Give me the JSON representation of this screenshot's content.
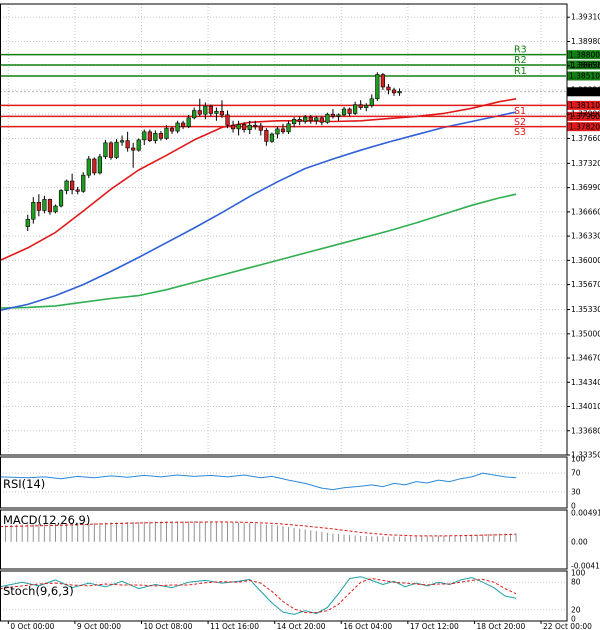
{
  "chart_data": {
    "type": "candlestick",
    "colors": {
      "background": "#ffffff",
      "grid": "#c8c8c8",
      "candle_up": "#1e9e1e",
      "candle_down": "#d42020",
      "wick": "#000000",
      "resistance": "#128012",
      "support": "#e01a1a",
      "ma_fast": "#e01a1a",
      "ma_mid": "#3060d8",
      "ma_slow": "#30b050",
      "rsi": "#2a8ad8",
      "macd_hist": "#909090",
      "macd_signal": "#e01a1a",
      "stoch_main": "#20a0a8",
      "stoch_signal": "#e01a1a",
      "current_price": "#000000"
    },
    "price_axis": {
      "ticks": [
        "1.39310",
        "1.38980",
        "1.38650",
        "1.38320",
        "1.37990",
        "1.37660",
        "1.37320",
        "1.36990",
        "1.36660",
        "1.36330",
        "1.36000",
        "1.35670",
        "1.35330",
        "1.35000",
        "1.34670",
        "1.34340",
        "1.34010",
        "1.33680",
        "1.33350"
      ],
      "ylim": [
        1.3335,
        1.3949
      ]
    },
    "time_axis": {
      "labels": [
        "0 Oct 00:00",
        "9 Oct 00:00",
        "10 Oct 08:00",
        "11 Oct 16:00",
        "14 Oct 20:00",
        "16 Oct 04:00",
        "17 Oct 12:00",
        "18 Oct 20:00",
        "22 Oct 00:00"
      ],
      "label_index": [
        -3.5,
        8.5,
        20.5,
        32.5,
        44.5,
        56.5,
        68.5,
        80.5,
        92.5
      ],
      "xlim": [
        -5,
        97
      ]
    },
    "levels": [
      {
        "name": "R3",
        "value": "1.38800",
        "kind": "resistance"
      },
      {
        "name": "R2",
        "value": "1.38660",
        "kind": "resistance"
      },
      {
        "name": "R1",
        "value": "1.38510",
        "kind": "resistance"
      },
      {
        "name": "S1",
        "value": "1.38110",
        "kind": "support"
      },
      {
        "name": "S2",
        "value": "1.37960",
        "kind": "support"
      },
      {
        "name": "S3",
        "value": "1.37820",
        "kind": "support"
      }
    ],
    "current_price": "1.38295",
    "ohlc": [
      [
        1.3646,
        1.3662,
        1.364,
        1.3656
      ],
      [
        1.3656,
        1.3686,
        1.365,
        1.3679
      ],
      [
        1.3679,
        1.369,
        1.366,
        1.3668
      ],
      [
        1.3668,
        1.3688,
        1.3664,
        1.3683
      ],
      [
        1.3683,
        1.3684,
        1.3662,
        1.3666
      ],
      [
        1.3666,
        1.3676,
        1.3664,
        1.3674
      ],
      [
        1.3674,
        1.3697,
        1.3672,
        1.3695
      ],
      [
        1.3695,
        1.371,
        1.369,
        1.3708
      ],
      [
        1.3708,
        1.3718,
        1.369,
        1.3696
      ],
      [
        1.3696,
        1.37,
        1.369,
        1.3694
      ],
      [
        1.3694,
        1.372,
        1.3692,
        1.3716
      ],
      [
        1.3716,
        1.3742,
        1.3712,
        1.3738
      ],
      [
        1.3738,
        1.374,
        1.3716,
        1.3719
      ],
      [
        1.3719,
        1.3745,
        1.3717,
        1.3741
      ],
      [
        1.3741,
        1.3764,
        1.3738,
        1.376
      ],
      [
        1.376,
        1.3762,
        1.3737,
        1.374
      ],
      [
        1.374,
        1.3765,
        1.3738,
        1.3761
      ],
      [
        1.3761,
        1.377,
        1.3756,
        1.3763
      ],
      [
        1.3763,
        1.3775,
        1.3748,
        1.3753
      ],
      [
        1.3753,
        1.376,
        1.3726,
        1.375
      ],
      [
        1.375,
        1.3766,
        1.3748,
        1.3764
      ],
      [
        1.3764,
        1.3778,
        1.3757,
        1.3775
      ],
      [
        1.3775,
        1.3778,
        1.3761,
        1.3763
      ],
      [
        1.3763,
        1.3777,
        1.3759,
        1.3773
      ],
      [
        1.3773,
        1.3776,
        1.3763,
        1.3766
      ],
      [
        1.3766,
        1.3784,
        1.3764,
        1.378
      ],
      [
        1.378,
        1.3782,
        1.3772,
        1.3776
      ],
      [
        1.3776,
        1.379,
        1.3773,
        1.3787
      ],
      [
        1.3787,
        1.379,
        1.3779,
        1.3782
      ],
      [
        1.3782,
        1.3798,
        1.378,
        1.3794
      ],
      [
        1.3794,
        1.3808,
        1.3792,
        1.3804
      ],
      [
        1.3804,
        1.382,
        1.3796,
        1.3799
      ],
      [
        1.3799,
        1.3815,
        1.3792,
        1.381
      ],
      [
        1.381,
        1.3812,
        1.3796,
        1.38
      ],
      [
        1.38,
        1.3808,
        1.379,
        1.3803
      ],
      [
        1.3803,
        1.3818,
        1.3794,
        1.3798
      ],
      [
        1.3798,
        1.3804,
        1.378,
        1.3784
      ],
      [
        1.3784,
        1.379,
        1.3774,
        1.3779
      ],
      [
        1.3779,
        1.379,
        1.377,
        1.3785
      ],
      [
        1.3785,
        1.3788,
        1.3774,
        1.3778
      ],
      [
        1.3778,
        1.379,
        1.3772,
        1.3784
      ],
      [
        1.3784,
        1.379,
        1.3778,
        1.3783
      ],
      [
        1.3783,
        1.3787,
        1.377,
        1.3777
      ],
      [
        1.3777,
        1.378,
        1.3756,
        1.3762
      ],
      [
        1.3762,
        1.3774,
        1.376,
        1.3772
      ],
      [
        1.3772,
        1.3782,
        1.3766,
        1.3779
      ],
      [
        1.3779,
        1.3786,
        1.3772,
        1.3775
      ],
      [
        1.3775,
        1.379,
        1.3772,
        1.3786
      ],
      [
        1.3786,
        1.3795,
        1.3781,
        1.3792
      ],
      [
        1.3792,
        1.3796,
        1.3784,
        1.3789
      ],
      [
        1.3789,
        1.3798,
        1.3786,
        1.3795
      ],
      [
        1.3795,
        1.3798,
        1.3786,
        1.379
      ],
      [
        1.379,
        1.3797,
        1.3785,
        1.3794
      ],
      [
        1.3794,
        1.3796,
        1.3784,
        1.3788
      ],
      [
        1.3788,
        1.3801,
        1.3786,
        1.3799
      ],
      [
        1.3799,
        1.3806,
        1.3793,
        1.3796
      ],
      [
        1.3796,
        1.38,
        1.379,
        1.3798
      ],
      [
        1.3798,
        1.3809,
        1.3796,
        1.3806
      ],
      [
        1.3806,
        1.3808,
        1.3796,
        1.38
      ],
      [
        1.38,
        1.3816,
        1.3798,
        1.3812
      ],
      [
        1.3812,
        1.3818,
        1.3805,
        1.3808
      ],
      [
        1.3808,
        1.3814,
        1.3803,
        1.3811
      ],
      [
        1.3811,
        1.3826,
        1.3808,
        1.382
      ],
      [
        1.382,
        1.3856,
        1.3817,
        1.3853
      ],
      [
        1.3853,
        1.3855,
        1.3832,
        1.3836
      ],
      [
        1.3836,
        1.384,
        1.3826,
        1.3832
      ],
      [
        1.3832,
        1.3835,
        1.3824,
        1.3828
      ],
      [
        1.3828,
        1.3834,
        1.3824,
        1.383
      ]
    ],
    "ma_fast": [
      [
        -5,
        1.36
      ],
      [
        0,
        1.3617
      ],
      [
        5,
        1.3638
      ],
      [
        10,
        1.3667
      ],
      [
        15,
        1.3697
      ],
      [
        20,
        1.3723
      ],
      [
        25,
        1.3743
      ],
      [
        30,
        1.3764
      ],
      [
        35,
        1.3781
      ],
      [
        40,
        1.3788
      ],
      [
        45,
        1.379
      ],
      [
        50,
        1.379
      ],
      [
        55,
        1.3789
      ],
      [
        60,
        1.379
      ],
      [
        65,
        1.3793
      ],
      [
        70,
        1.3796
      ],
      [
        75,
        1.38
      ],
      [
        80,
        1.3807
      ],
      [
        85,
        1.3816
      ],
      [
        88,
        1.382
      ]
    ],
    "ma_mid": [
      [
        -5,
        1.3532
      ],
      [
        0,
        1.354
      ],
      [
        5,
        1.3552
      ],
      [
        10,
        1.3567
      ],
      [
        15,
        1.3585
      ],
      [
        20,
        1.3604
      ],
      [
        25,
        1.3624
      ],
      [
        30,
        1.3644
      ],
      [
        35,
        1.3665
      ],
      [
        40,
        1.3687
      ],
      [
        45,
        1.3707
      ],
      [
        50,
        1.3725
      ],
      [
        55,
        1.3738
      ],
      [
        60,
        1.375
      ],
      [
        65,
        1.3761
      ],
      [
        70,
        1.3771
      ],
      [
        75,
        1.3781
      ],
      [
        80,
        1.3789
      ],
      [
        85,
        1.3797
      ],
      [
        88,
        1.3802
      ]
    ],
    "ma_slow": [
      [
        -5,
        1.3535
      ],
      [
        0,
        1.3536
      ],
      [
        5,
        1.3538
      ],
      [
        10,
        1.3543
      ],
      [
        15,
        1.3548
      ],
      [
        20,
        1.3552
      ],
      [
        25,
        1.356
      ],
      [
        30,
        1.357
      ],
      [
        35,
        1.358
      ],
      [
        40,
        1.359
      ],
      [
        45,
        1.36
      ],
      [
        50,
        1.361
      ],
      [
        55,
        1.362
      ],
      [
        60,
        1.363
      ],
      [
        65,
        1.364
      ],
      [
        70,
        1.3651
      ],
      [
        75,
        1.3663
      ],
      [
        80,
        1.3675
      ],
      [
        85,
        1.3685
      ],
      [
        88,
        1.369
      ]
    ],
    "rsi": {
      "label": "RSI(14)",
      "ticks": [
        "100",
        "70",
        "30",
        "0"
      ],
      "values": [
        [
          -5,
          62
        ],
        [
          0,
          60
        ],
        [
          3,
          62
        ],
        [
          6,
          58
        ],
        [
          9,
          63
        ],
        [
          12,
          60
        ],
        [
          15,
          64
        ],
        [
          18,
          61
        ],
        [
          21,
          65
        ],
        [
          24,
          62
        ],
        [
          27,
          66
        ],
        [
          30,
          63
        ],
        [
          33,
          65
        ],
        [
          36,
          62
        ],
        [
          39,
          66
        ],
        [
          42,
          60
        ],
        [
          44,
          63
        ],
        [
          47,
          55
        ],
        [
          50,
          48
        ],
        [
          53,
          38
        ],
        [
          55,
          35
        ],
        [
          57,
          39
        ],
        [
          60,
          42
        ],
        [
          62,
          45
        ],
        [
          64,
          41
        ],
        [
          66,
          48
        ],
        [
          68,
          45
        ],
        [
          70,
          52
        ],
        [
          72,
          49
        ],
        [
          74,
          55
        ],
        [
          76,
          52
        ],
        [
          78,
          58
        ],
        [
          80,
          62
        ],
        [
          82,
          70
        ],
        [
          84,
          66
        ],
        [
          86,
          62
        ],
        [
          88,
          60
        ]
      ]
    },
    "macd": {
      "label": "MACD(12,26,9)",
      "ticks": [
        "0.00491",
        "0.00",
        "-0.00412"
      ],
      "hist": [
        [
          -5,
          0.0028
        ],
        [
          0,
          0.003
        ],
        [
          5,
          0.0031
        ],
        [
          10,
          0.0032
        ],
        [
          15,
          0.0033
        ],
        [
          20,
          0.0034
        ],
        [
          25,
          0.0035
        ],
        [
          30,
          0.0035
        ],
        [
          35,
          0.0034
        ],
        [
          40,
          0.0032
        ],
        [
          45,
          0.0028
        ],
        [
          50,
          0.0021
        ],
        [
          55,
          0.0014
        ],
        [
          60,
          0.001
        ],
        [
          65,
          0.0009
        ],
        [
          70,
          0.0009
        ],
        [
          75,
          0.001
        ],
        [
          80,
          0.0012
        ],
        [
          85,
          0.0014
        ],
        [
          88,
          0.0014
        ]
      ],
      "signal": [
        [
          -5,
          0.0026
        ],
        [
          5,
          0.0028
        ],
        [
          15,
          0.0031
        ],
        [
          25,
          0.0033
        ],
        [
          35,
          0.0034
        ],
        [
          40,
          0.0033
        ],
        [
          45,
          0.0031
        ],
        [
          50,
          0.0027
        ],
        [
          55,
          0.0022
        ],
        [
          60,
          0.0016
        ],
        [
          65,
          0.0012
        ],
        [
          70,
          0.001
        ],
        [
          75,
          0.001
        ],
        [
          80,
          0.0011
        ],
        [
          85,
          0.0012
        ],
        [
          88,
          0.0013
        ]
      ]
    },
    "stoch": {
      "label": "Stoch(9,6,3)",
      "ticks": [
        "100",
        "80",
        "20",
        "0"
      ],
      "main": [
        [
          -5,
          70
        ],
        [
          -1,
          80
        ],
        [
          2,
          72
        ],
        [
          5,
          85
        ],
        [
          8,
          68
        ],
        [
          11,
          78
        ],
        [
          14,
          70
        ],
        [
          17,
          82
        ],
        [
          20,
          66
        ],
        [
          23,
          75
        ],
        [
          26,
          68
        ],
        [
          29,
          80
        ],
        [
          32,
          84
        ],
        [
          35,
          78
        ],
        [
          38,
          82
        ],
        [
          40,
          86
        ],
        [
          42,
          60
        ],
        [
          44,
          35
        ],
        [
          46,
          15
        ],
        [
          48,
          10
        ],
        [
          50,
          18
        ],
        [
          52,
          12
        ],
        [
          54,
          25
        ],
        [
          56,
          55
        ],
        [
          58,
          88
        ],
        [
          60,
          92
        ],
        [
          62,
          84
        ],
        [
          64,
          75
        ],
        [
          66,
          82
        ],
        [
          68,
          70
        ],
        [
          70,
          78
        ],
        [
          72,
          72
        ],
        [
          74,
          80
        ],
        [
          76,
          75
        ],
        [
          78,
          85
        ],
        [
          80,
          90
        ],
        [
          82,
          80
        ],
        [
          84,
          68
        ],
        [
          86,
          50
        ],
        [
          88,
          45
        ]
      ],
      "signal": [
        [
          -5,
          66
        ],
        [
          -1,
          72
        ],
        [
          2,
          76
        ],
        [
          5,
          78
        ],
        [
          8,
          74
        ],
        [
          11,
          72
        ],
        [
          14,
          76
        ],
        [
          17,
          74
        ],
        [
          20,
          74
        ],
        [
          23,
          72
        ],
        [
          26,
          74
        ],
        [
          29,
          74
        ],
        [
          32,
          79
        ],
        [
          35,
          81
        ],
        [
          38,
          80
        ],
        [
          40,
          84
        ],
        [
          42,
          78
        ],
        [
          44,
          60
        ],
        [
          46,
          38
        ],
        [
          48,
          22
        ],
        [
          50,
          14
        ],
        [
          52,
          14
        ],
        [
          54,
          18
        ],
        [
          56,
          32
        ],
        [
          58,
          56
        ],
        [
          60,
          80
        ],
        [
          62,
          88
        ],
        [
          64,
          84
        ],
        [
          66,
          80
        ],
        [
          68,
          78
        ],
        [
          70,
          76
        ],
        [
          72,
          74
        ],
        [
          74,
          76
        ],
        [
          76,
          76
        ],
        [
          78,
          80
        ],
        [
          80,
          84
        ],
        [
          82,
          86
        ],
        [
          84,
          80
        ],
        [
          86,
          66
        ],
        [
          88,
          55
        ]
      ]
    }
  }
}
